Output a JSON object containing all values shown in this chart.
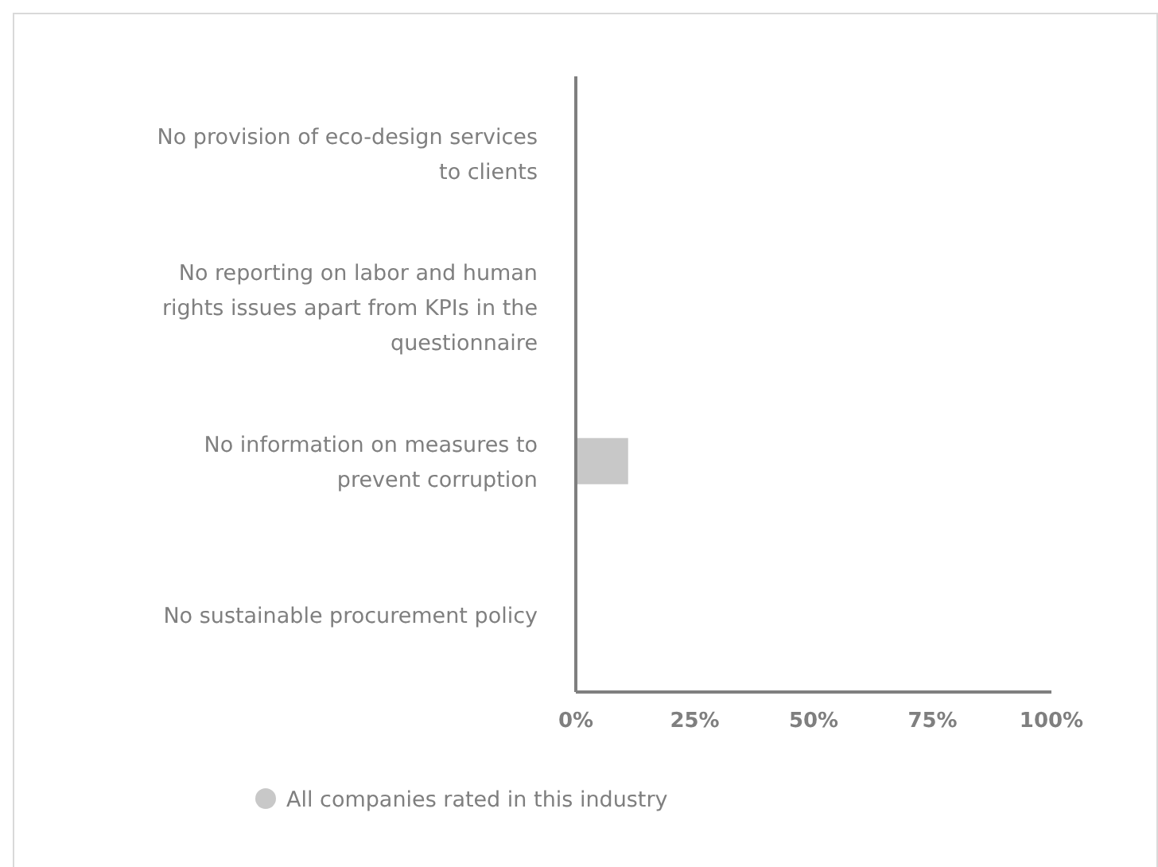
{
  "chart_data": {
    "type": "bar",
    "orientation": "horizontal",
    "categories": [
      "No provision of eco-design services to clients",
      "No reporting on labor and human rights issues apart from KPIs in the questionnaire",
      "No information on measures to prevent corruption",
      "No sustainable procurement policy"
    ],
    "series": [
      {
        "name": "All companies rated in this industry",
        "color": "#c8c8c8",
        "values": [
          0,
          0,
          11,
          0
        ]
      }
    ],
    "xlim": [
      0,
      100
    ],
    "xticks": [
      {
        "value": 0,
        "label": "0%"
      },
      {
        "value": 25,
        "label": "25%"
      },
      {
        "value": 50,
        "label": "50%"
      },
      {
        "value": 75,
        "label": "75%"
      },
      {
        "value": 100,
        "label": "100%"
      }
    ],
    "legend": "bottom",
    "grid": false
  }
}
